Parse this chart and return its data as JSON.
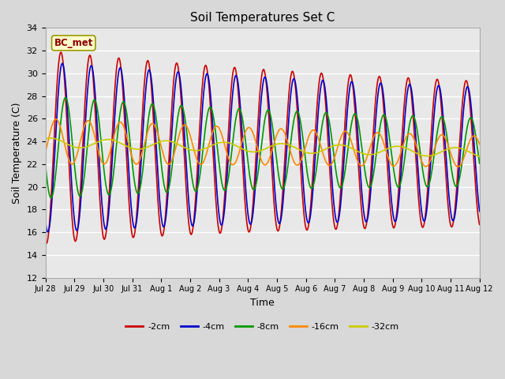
{
  "title": "Soil Temperatures Set C",
  "xlabel": "Time",
  "ylabel": "Soil Temperature (C)",
  "ylim": [
    12,
    34
  ],
  "fig_bg": "#d8d8d8",
  "plot_bg": "#e8e8e8",
  "label_box": "BC_met",
  "x_labels": [
    "Jul 28",
    "Jul 29",
    "Jul 30",
    "Jul 31",
    "Aug 1",
    "Aug 2",
    "Aug 3",
    "Aug 4",
    "Aug 5",
    "Aug 6",
    "Aug 7",
    "Aug 8",
    "Aug 9",
    "Aug 10",
    "Aug 11",
    "Aug 12"
  ],
  "series": [
    {
      "label": "-2cm",
      "color": "#cc0000",
      "lw": 1.2
    },
    {
      "label": "-4cm",
      "color": "#0000cc",
      "lw": 1.2
    },
    {
      "label": "-8cm",
      "color": "#009900",
      "lw": 1.2
    },
    {
      "label": "-16cm",
      "color": "#ff8800",
      "lw": 1.2
    },
    {
      "label": "-32cm",
      "color": "#cccc00",
      "lw": 1.2
    }
  ]
}
